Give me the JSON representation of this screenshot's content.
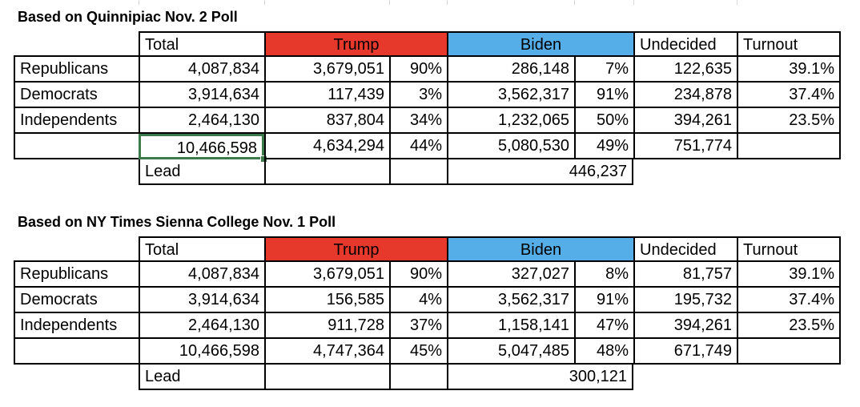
{
  "tables": [
    {
      "title": "Based on Quinnipiac Nov. 2 Poll",
      "headers": {
        "total": "Total",
        "trump": "Trump",
        "biden": "Biden",
        "undecided": "Undecided",
        "turnout": "Turnout"
      },
      "rows": [
        {
          "label": "Republicans",
          "total": "4,087,834",
          "trump": "3,679,051",
          "trump_pct": "90%",
          "biden": "286,148",
          "biden_pct": "7%",
          "undecided": "122,635",
          "turnout": "39.1%"
        },
        {
          "label": "Democrats",
          "total": "3,914,634",
          "trump": "117,439",
          "trump_pct": "3%",
          "biden": "3,562,317",
          "biden_pct": "91%",
          "undecided": "234,878",
          "turnout": "37.4%"
        },
        {
          "label": "Independents",
          "total": "2,464,130",
          "trump": "837,804",
          "trump_pct": "34%",
          "biden": "1,232,065",
          "biden_pct": "50%",
          "undecided": "394,261",
          "turnout": "23.5%"
        }
      ],
      "totals": {
        "total": "10,466,598",
        "trump": "4,634,294",
        "trump_pct": "44%",
        "biden": "5,080,530",
        "biden_pct": "49%",
        "undecided": "751,774"
      },
      "lead_label": "Lead",
      "lead_value": "446,237"
    },
    {
      "title": "Based on NY Times Sienna College Nov. 1 Poll",
      "headers": {
        "total": "Total",
        "trump": "Trump",
        "biden": "Biden",
        "undecided": "Undecided",
        "turnout": "Turnout"
      },
      "rows": [
        {
          "label": "Republicans",
          "total": "4,087,834",
          "trump": "3,679,051",
          "trump_pct": "90%",
          "biden": "327,027",
          "biden_pct": "8%",
          "undecided": "81,757",
          "turnout": "39.1%"
        },
        {
          "label": "Democrats",
          "total": "3,914,634",
          "trump": "156,585",
          "trump_pct": "4%",
          "biden": "3,562,317",
          "biden_pct": "91%",
          "undecided": "195,732",
          "turnout": "37.4%"
        },
        {
          "label": "Independents",
          "total": "2,464,130",
          "trump": "911,728",
          "trump_pct": "37%",
          "biden": "1,158,141",
          "biden_pct": "47%",
          "undecided": "394,261",
          "turnout": "23.5%"
        }
      ],
      "totals": {
        "total": "10,466,598",
        "trump": "4,747,364",
        "trump_pct": "45%",
        "biden": "5,047,485",
        "biden_pct": "48%",
        "undecided": "671,749"
      },
      "lead_label": "Lead",
      "lead_value": "300,121"
    }
  ],
  "colors": {
    "trump_header": "#e7392b",
    "biden_header": "#55aee8",
    "selection": "#3c7a4a"
  }
}
